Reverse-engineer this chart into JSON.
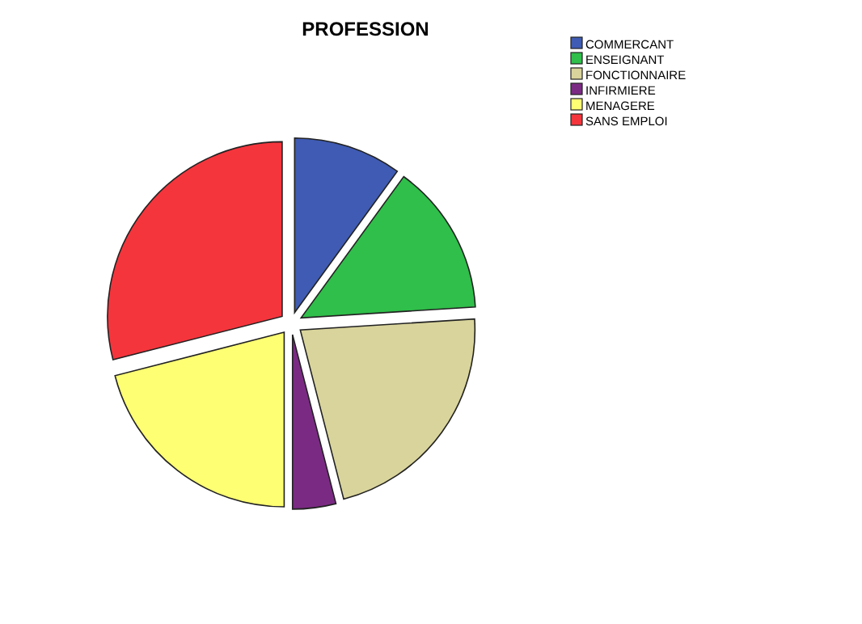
{
  "chart_data": {
    "type": "pie",
    "title": "PROFESSION",
    "categories": [
      "COMMERCANT",
      "ENSEIGNANT",
      "FONCTIONNAIRE",
      "INFIRMIERE",
      "MENAGERE",
      "SANS EMPLOI"
    ],
    "values": [
      10,
      14,
      22,
      4,
      21,
      29
    ],
    "colors": [
      "#3f5bb3",
      "#2fbf4a",
      "#d9d49b",
      "#7b2a84",
      "#ffff73",
      "#f5353c"
    ],
    "legend": "top right"
  }
}
